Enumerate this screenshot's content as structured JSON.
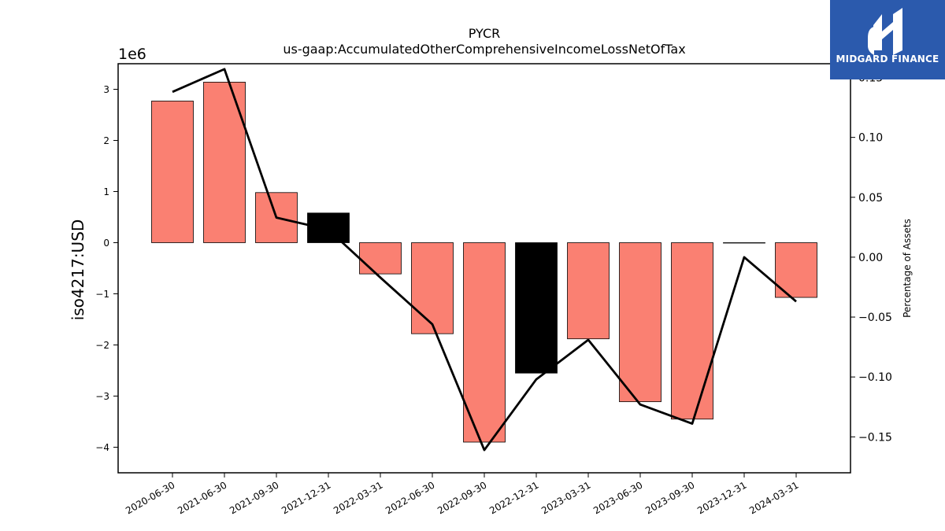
{
  "chart_data": {
    "type": "bar",
    "title": "PYCR",
    "subtitle": "us-gaap:AccumulatedOtherComprehensiveIncomeLossNetOfTax",
    "ylabel": "iso4217:USD",
    "y2label": "Percentage of Assets",
    "y_offset_label": "1e6",
    "categories": [
      "2020-06-30",
      "2021-06-30",
      "2021-09-30",
      "2021-12-31",
      "2022-03-31",
      "2022-06-30",
      "2022-09-30",
      "2022-12-31",
      "2023-03-31",
      "2023-06-30",
      "2023-09-30",
      "2023-12-31",
      "2024-03-31"
    ],
    "values": [
      2.77,
      3.14,
      0.98,
      0.58,
      -0.61,
      -1.78,
      -3.9,
      -2.55,
      -1.88,
      -3.11,
      -3.45,
      0.0,
      -1.07
    ],
    "bar_highlight": [
      false,
      false,
      false,
      true,
      false,
      false,
      false,
      true,
      false,
      false,
      false,
      false,
      false
    ],
    "line_values": [
      0.138,
      0.157,
      0.033,
      0.023,
      -0.017,
      -0.056,
      -0.161,
      -0.102,
      -0.069,
      -0.123,
      -0.139,
      0.0,
      -0.037
    ],
    "ylim": [
      -4.5,
      3.5
    ],
    "y2lim": [
      -0.18,
      0.1615
    ],
    "yticks": [
      -4,
      -3,
      -2,
      -1,
      0,
      1,
      2,
      3
    ],
    "y2ticks": [
      -0.15,
      -0.1,
      -0.05,
      0.0,
      0.05,
      0.1,
      0.15
    ],
    "grid": false,
    "colors": {
      "bar": "#fa8072",
      "bar_highlight": "#000000",
      "line": "#000000"
    }
  },
  "logo": {
    "text": "MIDGARD FINANCE",
    "bg": "#2b5aad"
  }
}
